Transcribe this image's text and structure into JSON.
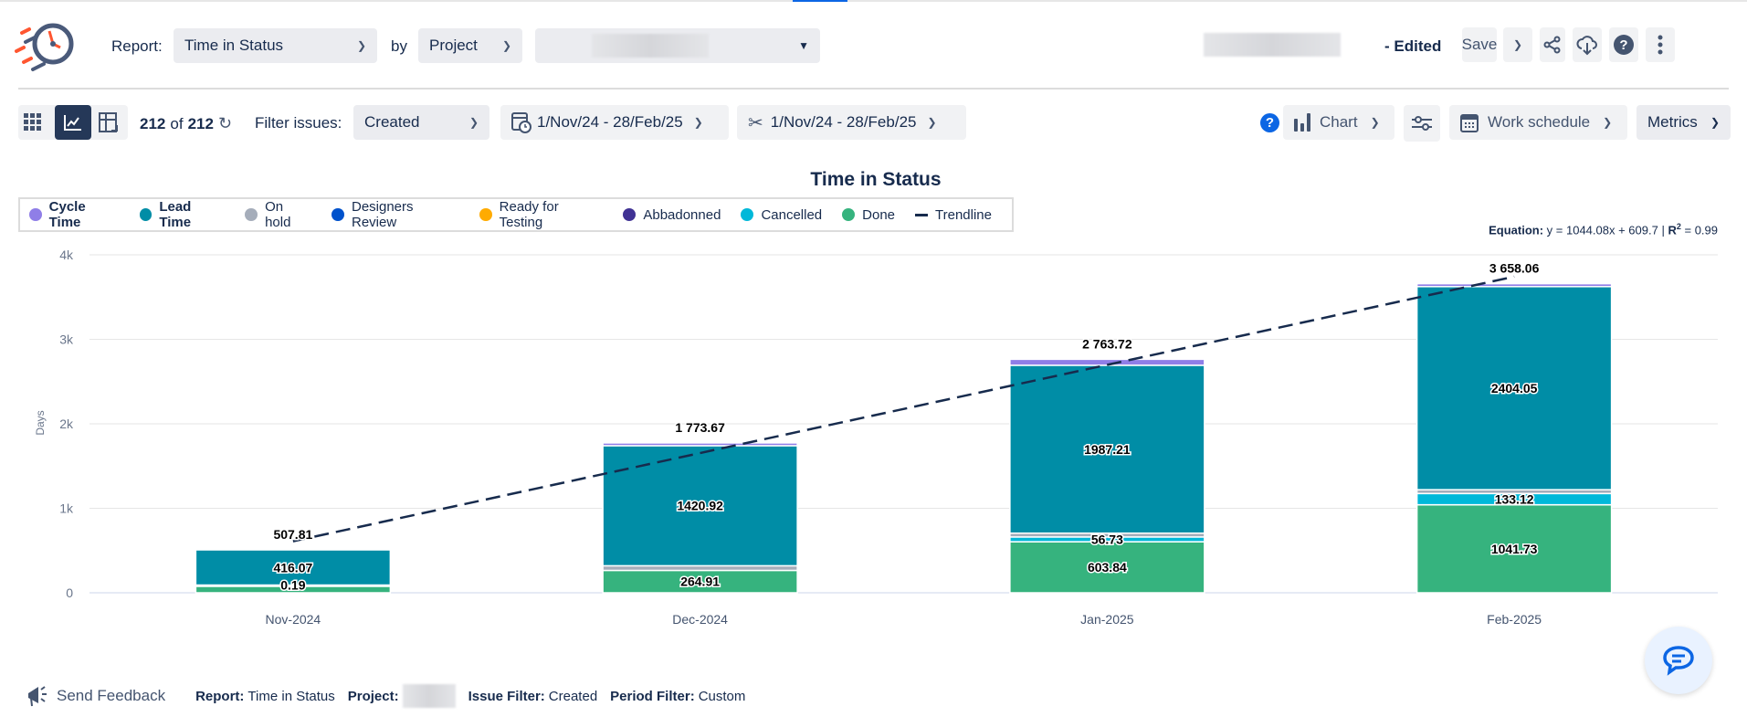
{
  "header": {
    "report_label": "Report:",
    "report_value": "Time in Status",
    "by_label": "by",
    "by_value": "Project",
    "edited_label": "- Edited",
    "save_label": "Save"
  },
  "toolbar": {
    "count_shown": "212",
    "count_of": "of",
    "count_total": "212",
    "filter_label": "Filter issues:",
    "filter_value": "Created",
    "date_range_1": "1/Nov/24 - 28/Feb/25",
    "date_range_2": "1/Nov/24 - 28/Feb/25",
    "chart_label": "Chart",
    "work_schedule_label": "Work schedule",
    "metrics_label": "Metrics"
  },
  "chart_data": {
    "type": "bar",
    "stacked": true,
    "title": "Time in Status",
    "ylabel": "Days",
    "xlabel": "",
    "ylim": [
      0,
      4000
    ],
    "yticks": [
      "0",
      "1k",
      "2k",
      "3k",
      "4k"
    ],
    "ytick_values": [
      0,
      1000,
      2000,
      3000,
      4000
    ],
    "grid": true,
    "legend_position": "top-left",
    "categories": [
      "Nov-2024",
      "Dec-2024",
      "Jan-2025",
      "Feb-2025"
    ],
    "totals": [
      507.81,
      1773.67,
      2763.72,
      3658.06
    ],
    "total_labels": [
      "507.81",
      "1 773.67",
      "2 763.72",
      "3 658.06"
    ],
    "legend": [
      {
        "name": "Cycle Time",
        "color": "#8f7ee7",
        "bold": true
      },
      {
        "name": "Lead Time",
        "color": "#008da6",
        "bold": true
      },
      {
        "name": "On hold",
        "color": "#a5adba",
        "bold": false
      },
      {
        "name": "Designers Review",
        "color": "#0052cc",
        "bold": false
      },
      {
        "name": "Ready for Testing",
        "color": "#ffab00",
        "bold": false
      },
      {
        "name": "Abbadonned",
        "color": "#403294",
        "bold": false
      },
      {
        "name": "Cancelled",
        "color": "#00b8d9",
        "bold": false
      },
      {
        "name": "Done",
        "color": "#36b37e",
        "bold": false
      }
    ],
    "stacks": [
      [
        {
          "series": "Done",
          "value": 91.55,
          "label": null
        },
        {
          "series": "Cancelled",
          "value": 0.19,
          "label": "0.19"
        },
        {
          "series": "Lead Time",
          "value": 416.07,
          "label": "416.07"
        }
      ],
      [
        {
          "series": "Done",
          "value": 264.91,
          "label": "264.91"
        },
        {
          "series": "On hold",
          "value": 55,
          "label": null
        },
        {
          "series": "Lead Time",
          "value": 1420.92,
          "label": "1420.92"
        },
        {
          "series": "Cycle Time",
          "value": 32.84,
          "label": null
        }
      ],
      [
        {
          "series": "Done",
          "value": 603.84,
          "label": "603.84"
        },
        {
          "series": "Cancelled",
          "value": 56.73,
          "label": "56.73"
        },
        {
          "series": "On hold",
          "value": 45,
          "label": null
        },
        {
          "series": "Lead Time",
          "value": 1987.21,
          "label": "1987.21"
        },
        {
          "series": "Cycle Time",
          "value": 70.94,
          "label": null
        }
      ],
      [
        {
          "series": "Done",
          "value": 1041.73,
          "label": "1041.73"
        },
        {
          "series": "Cancelled",
          "value": 133.12,
          "label": "133.12"
        },
        {
          "series": "On hold",
          "value": 45,
          "label": null
        },
        {
          "series": "Lead Time",
          "value": 2404.05,
          "label": "2404.05"
        },
        {
          "series": "Cycle Time",
          "value": 34.16,
          "label": null
        }
      ]
    ],
    "trendline": {
      "name": "Trendline",
      "slope": 1044.08,
      "intercept": 609.7,
      "r2": 0.99,
      "color": "#172b4d"
    },
    "equation": {
      "label": "Equation:",
      "text": "y = 1044.08x + 609.7 |",
      "r_label": "R",
      "r_sup": "2",
      "r_value": "= 0.99"
    }
  },
  "footer": {
    "feedback_label": "Send Feedback",
    "report_key": "Report:",
    "report_val": "Time in Status",
    "project_key": "Project:",
    "issue_filter_key": "Issue Filter:",
    "issue_filter_val": "Created",
    "period_filter_key": "Period Filter:",
    "period_filter_val": "Custom"
  }
}
